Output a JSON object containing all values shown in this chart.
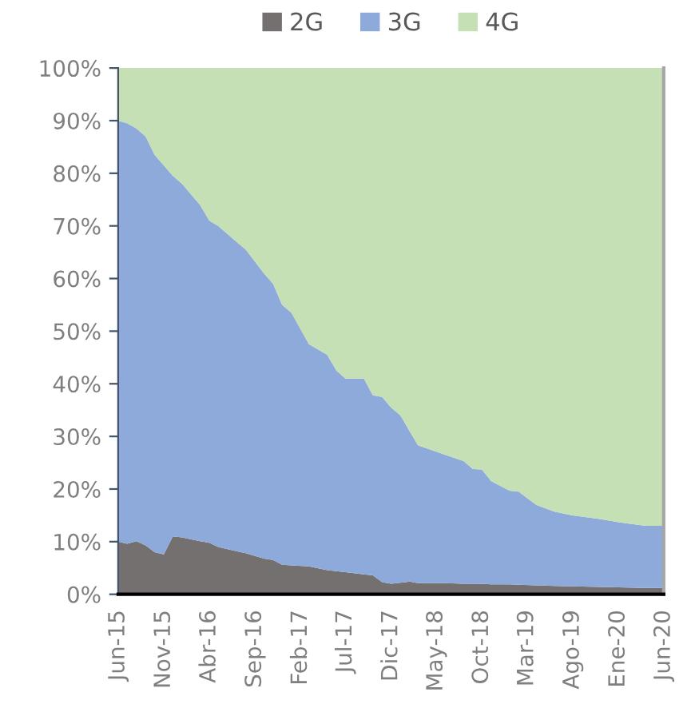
{
  "chart_data": {
    "type": "area",
    "stacked": true,
    "x": [
      "2015-06",
      "2015-07",
      "2015-08",
      "2015-09",
      "2015-10",
      "2015-11",
      "2015-12",
      "2016-01",
      "2016-03",
      "2016-04",
      "2016-05",
      "2016-07",
      "2016-08",
      "2016-10",
      "2016-11",
      "2016-12",
      "2017-01",
      "2017-03",
      "2017-05",
      "2017-06",
      "2017-07",
      "2017-09",
      "2017-10",
      "2017-11",
      "2017-12",
      "2018-01",
      "2018-02",
      "2018-03",
      "2018-06",
      "2018-08",
      "2018-09",
      "2018-10",
      "2018-11",
      "2019-01",
      "2019-02",
      "2019-04",
      "2019-06",
      "2019-08",
      "2019-11",
      "2020-01",
      "2020-04",
      "2020-06"
    ],
    "series": [
      {
        "name": "2G",
        "color": "#757070",
        "values": [
          10.0,
          9.6,
          10.1,
          9.3,
          8.0,
          7.6,
          11.0,
          10.8,
          10.1,
          9.8,
          9.0,
          8.2,
          7.8,
          6.8,
          6.5,
          5.6,
          5.5,
          5.3,
          4.6,
          4.4,
          4.2,
          3.8,
          3.6,
          2.3,
          2.0,
          2.2,
          2.4,
          2.1,
          2.1,
          2.0,
          2.0,
          2.0,
          1.9,
          1.9,
          1.8,
          1.7,
          1.6,
          1.5,
          1.4,
          1.3,
          1.2,
          1.2
        ]
      },
      {
        "name": "3G",
        "color": "#8eaadb",
        "values": [
          80.0,
          79.9,
          78.4,
          77.7,
          75.5,
          73.9,
          68.5,
          67.2,
          63.9,
          61.2,
          61.0,
          58.8,
          57.7,
          54.2,
          52.5,
          49.4,
          48.0,
          42.2,
          40.9,
          38.1,
          36.8,
          37.2,
          34.2,
          35.2,
          33.5,
          31.8,
          28.6,
          26.2,
          24.4,
          23.3,
          21.8,
          21.7,
          19.6,
          17.8,
          17.7,
          15.3,
          14.1,
          13.5,
          12.9,
          12.4,
          11.8,
          11.8
        ]
      },
      {
        "name": "4G",
        "color": "#c5e0b4",
        "values": [
          10.0,
          10.5,
          11.5,
          13,
          16.5,
          18.5,
          20.5,
          22,
          26,
          29,
          30,
          33,
          34.5,
          39,
          41,
          45,
          46.5,
          52.5,
          54.5,
          57.5,
          59,
          59,
          62.2,
          62.5,
          64.5,
          66,
          69,
          71.7,
          73.5,
          74.7,
          76.2,
          76.3,
          78.5,
          80.3,
          80.5,
          83,
          84.3,
          85,
          85.7,
          86.3,
          87,
          87
        ]
      }
    ],
    "xlim": [
      "2015-06",
      "2020-06"
    ],
    "xticks": [
      {
        "value": "2015-06",
        "label": "Jun-15"
      },
      {
        "value": "2015-11",
        "label": "Nov-15"
      },
      {
        "value": "2016-04",
        "label": "Abr-16"
      },
      {
        "value": "2016-09",
        "label": "Sep-16"
      },
      {
        "value": "2017-02",
        "label": "Feb-17"
      },
      {
        "value": "2017-07",
        "label": "Jul-17"
      },
      {
        "value": "2017-12",
        "label": "Dic-17"
      },
      {
        "value": "2018-05",
        "label": "May-18"
      },
      {
        "value": "2018-10",
        "label": "Oct-18"
      },
      {
        "value": "2019-03",
        "label": "Mar-19"
      },
      {
        "value": "2019-08",
        "label": "Ago-19"
      },
      {
        "value": "2020-01",
        "label": "Ene-20"
      },
      {
        "value": "2020-06",
        "label": "Jun-20"
      }
    ],
    "ylim": [
      0,
      100
    ],
    "yticks": [
      {
        "value": 0,
        "label": "0%"
      },
      {
        "value": 10,
        "label": "10%"
      },
      {
        "value": 20,
        "label": "20%"
      },
      {
        "value": 30,
        "label": "30%"
      },
      {
        "value": 40,
        "label": "40%"
      },
      {
        "value": 50,
        "label": "50%"
      },
      {
        "value": 60,
        "label": "60%"
      },
      {
        "value": 70,
        "label": "70%"
      },
      {
        "value": 80,
        "label": "80%"
      },
      {
        "value": 90,
        "label": "90%"
      },
      {
        "value": 100,
        "label": "100%"
      }
    ],
    "legend": "top",
    "grid": false
  }
}
